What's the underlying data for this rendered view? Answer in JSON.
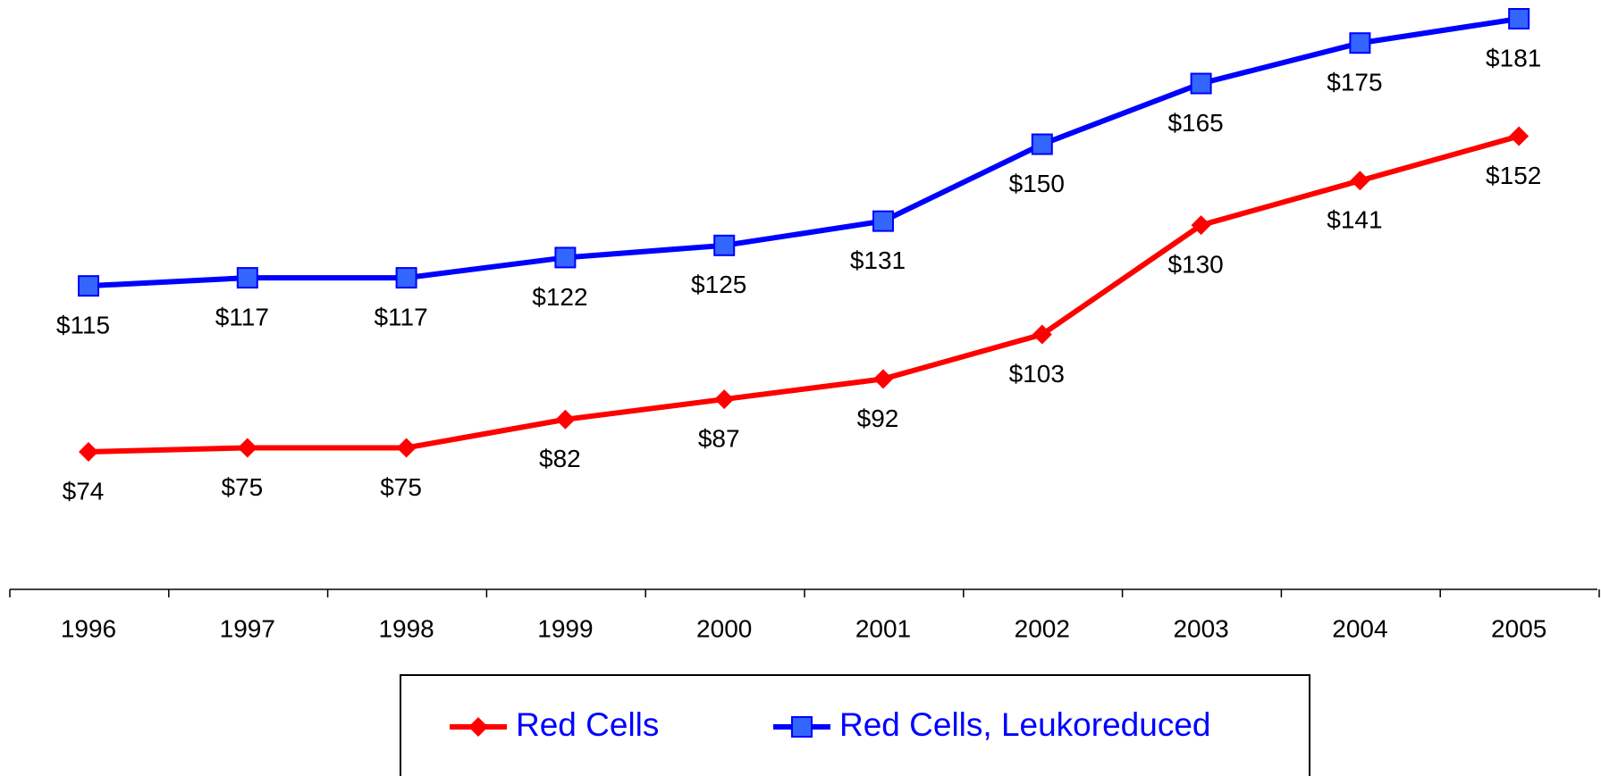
{
  "chart_data": {
    "type": "line",
    "categories": [
      "1996",
      "1997",
      "1998",
      "1999",
      "2000",
      "2001",
      "2002",
      "2003",
      "2004",
      "2005"
    ],
    "series": [
      {
        "name": "Red Cells",
        "color": "#ff0000",
        "marker": "diamond",
        "marker_color": "#ff0000",
        "values": [
          74,
          75,
          75,
          82,
          87,
          92,
          103,
          130,
          141,
          152
        ],
        "value_labels": [
          "$74",
          "$75",
          "$75",
          "$82",
          "$87",
          "$92",
          "$103",
          "$130",
          "$141",
          "$152"
        ]
      },
      {
        "name": "Red Cells, Leukoreduced",
        "color": "#0000ff",
        "marker": "square",
        "marker_color": "#3366ff",
        "values": [
          115,
          117,
          117,
          122,
          125,
          131,
          150,
          165,
          175,
          181
        ],
        "value_labels": [
          "$115",
          "$117",
          "$117",
          "$122",
          "$125",
          "$131",
          "$150",
          "$165",
          "$175",
          "$181"
        ]
      }
    ],
    "legend_text_color": "#0000ff"
  }
}
